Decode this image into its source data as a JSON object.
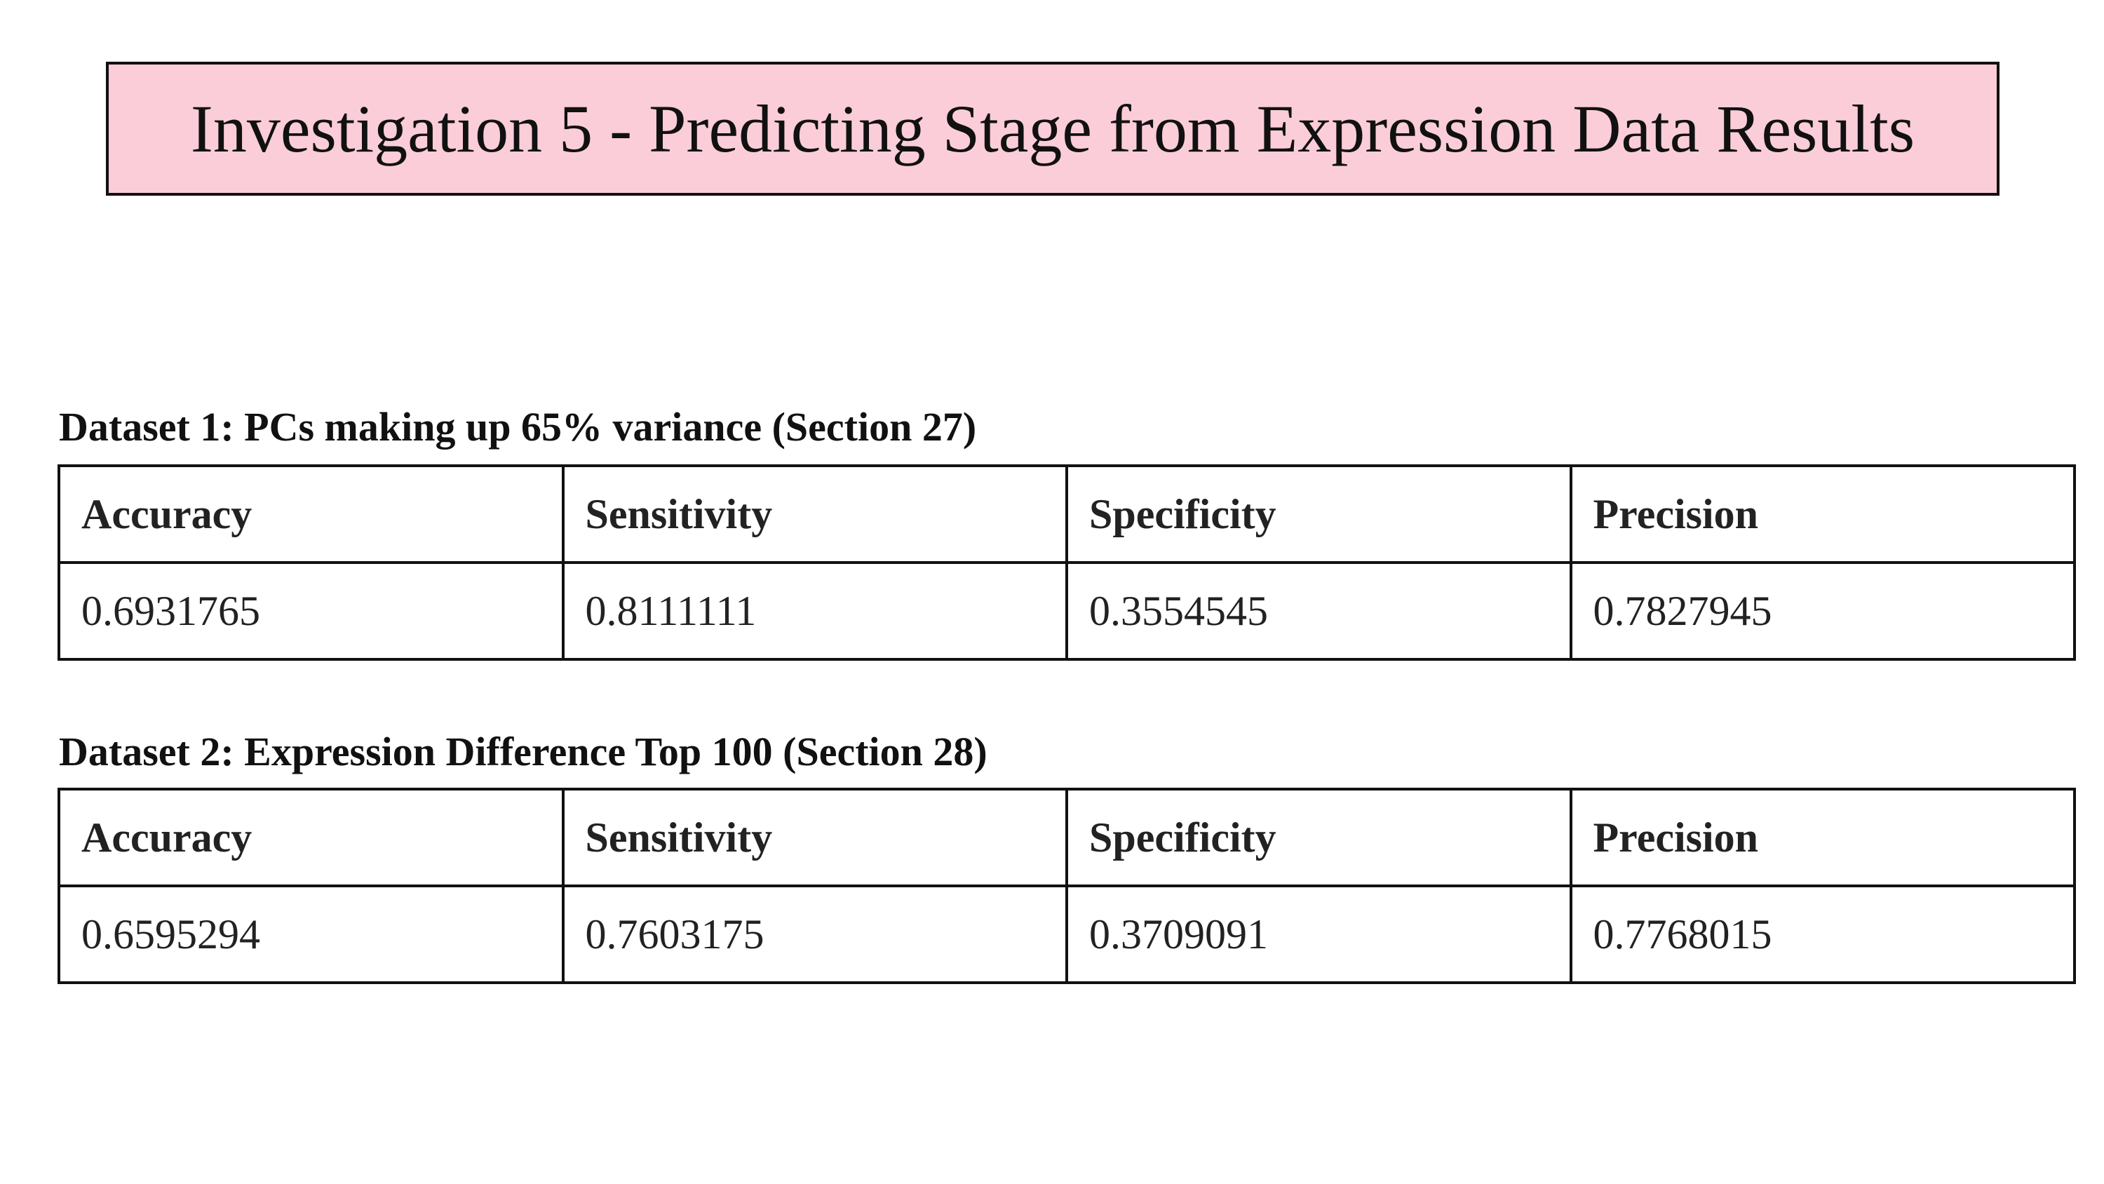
{
  "title": "Investigation 5 - Predicting Stage from Expression Data Results",
  "datasets": [
    {
      "caption": "Dataset 1: PCs making up 65% variance (Section 27)",
      "headers": [
        "Accuracy",
        "Sensitivity",
        "Specificity",
        "Precision"
      ],
      "values": [
        0.6931765,
        0.8111111,
        0.3554545,
        0.7827945
      ]
    },
    {
      "caption": "Dataset 2: Expression Difference Top 100 (Section 28)",
      "headers": [
        "Accuracy",
        "Sensitivity",
        "Specificity",
        "Precision"
      ],
      "values": [
        0.6595294,
        0.7603175,
        0.3709091,
        0.7768015
      ]
    }
  ]
}
